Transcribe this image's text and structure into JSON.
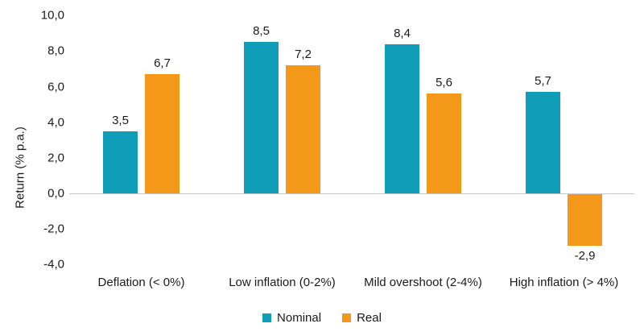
{
  "chart_data": {
    "type": "bar",
    "title": "",
    "categories": [
      "Deflation (< 0%)",
      "Low inflation (0-2%)",
      "Mild overshoot (2-4%)",
      "High inflation (> 4%)"
    ],
    "series": [
      {
        "name": "Nominal",
        "color": "#0f9db8",
        "values": [
          3.5,
          8.5,
          8.4,
          5.7
        ],
        "value_labels": [
          "3,5",
          "8,5",
          "8,4",
          "5,7"
        ]
      },
      {
        "name": "Real",
        "color": "#f49819",
        "values": [
          6.7,
          7.2,
          5.6,
          -2.9
        ],
        "value_labels": [
          "6,7",
          "7,2",
          "5,6",
          "-2,9"
        ]
      }
    ],
    "xlabel": "",
    "ylabel": "Return (% p.a.)",
    "ylim": [
      -4,
      10
    ],
    "yticks": [
      10,
      8,
      6,
      4,
      2,
      0,
      -2,
      -4
    ],
    "ytick_labels": [
      "10,0",
      "8,0",
      "6,0",
      "4,0",
      "2,0",
      "0,0",
      "-2,0",
      "-4,0"
    ],
    "grid": false,
    "legend_position": "bottom",
    "decimal_separator": ","
  },
  "colors": {
    "nominal": "#0f9db8",
    "real": "#f49819",
    "axis_line": "#c6c6c6",
    "text": "#1a1a1a",
    "background": "#ffffff"
  }
}
